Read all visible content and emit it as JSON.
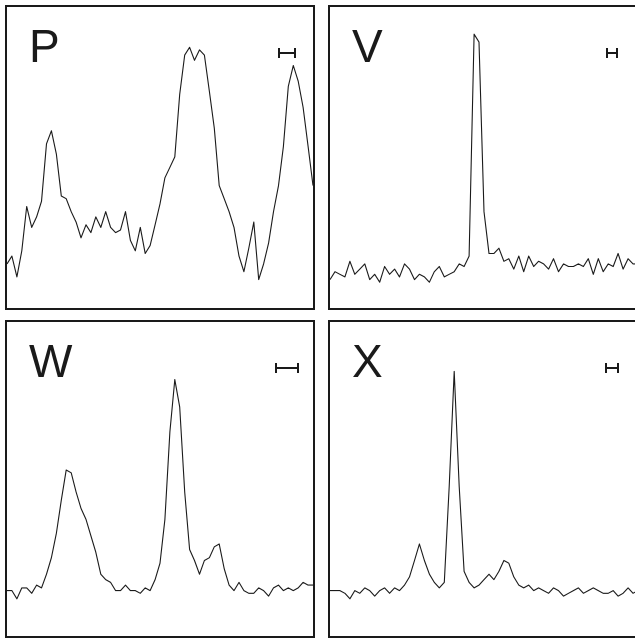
{
  "chart_data": [
    {
      "type": "line",
      "label": "P",
      "scale_bar_halfwidth": 8,
      "line_color": "#1a1a1a",
      "x": [
        0,
        1,
        2,
        3,
        4,
        5,
        6,
        7,
        8,
        9,
        10,
        11,
        12,
        13,
        14,
        15,
        16,
        17,
        18,
        19,
        20,
        21,
        22,
        23,
        24,
        25,
        26,
        27,
        28,
        29,
        30,
        31,
        32,
        33,
        34,
        35,
        36,
        37,
        38,
        39,
        40,
        41,
        42,
        43,
        44,
        45,
        46,
        47,
        48,
        49,
        50,
        51,
        52,
        53,
        54,
        55,
        56,
        57,
        58,
        59,
        60,
        61,
        62
      ],
      "values": [
        10,
        13,
        5,
        15,
        32,
        24,
        28,
        34,
        56,
        61,
        52,
        36,
        35,
        30,
        26,
        20,
        25,
        22,
        28,
        24,
        30,
        24,
        22,
        23,
        30,
        19,
        15,
        24,
        14,
        17,
        25,
        33,
        43,
        47,
        51,
        75,
        90,
        93,
        88,
        92,
        90,
        76,
        62,
        40,
        35,
        30,
        24,
        13,
        7,
        16,
        26,
        4,
        10,
        18,
        30,
        40,
        55,
        78,
        86,
        80,
        70,
        55,
        40
      ],
      "ylim": [
        0,
        100
      ]
    },
    {
      "type": "line",
      "label": "V",
      "scale_bar_halfwidth": 5,
      "line_color": "#1a1a1a",
      "x": [
        0,
        1,
        2,
        3,
        4,
        5,
        6,
        7,
        8,
        9,
        10,
        11,
        12,
        13,
        14,
        15,
        16,
        17,
        18,
        19,
        20,
        21,
        22,
        23,
        24,
        25,
        26,
        27,
        28,
        29,
        30,
        31,
        32,
        33,
        34,
        35,
        36,
        37,
        38,
        39,
        40,
        41,
        42,
        43,
        44,
        45,
        46,
        47,
        48,
        49,
        50,
        51,
        52,
        53,
        54,
        55,
        56,
        57,
        58,
        59,
        60,
        61,
        62
      ],
      "values": [
        4,
        7,
        6,
        5,
        11,
        6,
        8,
        10,
        4,
        6,
        3,
        9,
        6,
        8,
        5,
        10,
        8,
        4,
        6,
        5,
        3,
        7,
        9,
        5,
        6,
        7,
        10,
        9,
        13,
        98,
        95,
        30,
        14,
        14,
        16,
        11,
        12,
        8,
        13,
        7,
        13,
        9,
        11,
        10,
        8,
        12,
        7,
        10,
        9,
        9,
        10,
        9,
        12,
        6,
        12,
        7,
        10,
        9,
        14,
        8,
        12,
        10,
        10
      ],
      "ylim": [
        0,
        100
      ]
    },
    {
      "type": "line",
      "label": "W",
      "scale_bar_halfwidth": 11,
      "line_color": "#1a1a1a",
      "x": [
        0,
        1,
        2,
        3,
        4,
        5,
        6,
        7,
        8,
        9,
        10,
        11,
        12,
        13,
        14,
        15,
        16,
        17,
        18,
        19,
        20,
        21,
        22,
        23,
        24,
        25,
        26,
        27,
        28,
        29,
        30,
        31,
        32,
        33,
        34,
        35,
        36,
        37,
        38,
        39,
        40,
        41,
        42,
        43,
        44,
        45,
        46,
        47,
        48,
        49,
        50,
        51,
        52,
        53,
        54,
        55,
        56,
        57,
        58,
        59,
        60,
        61,
        62
      ],
      "values": [
        10,
        10,
        7,
        11,
        11,
        9,
        12,
        11,
        16,
        22,
        31,
        43,
        54,
        53,
        46,
        40,
        36,
        30,
        24,
        16,
        14,
        13,
        10,
        10,
        12,
        10,
        10,
        9,
        11,
        10,
        14,
        20,
        36,
        68,
        87,
        77,
        46,
        25,
        21,
        16,
        21,
        22,
        26,
        27,
        18,
        12,
        10,
        13,
        10,
        9,
        9,
        11,
        10,
        8,
        11,
        12,
        10,
        11,
        10,
        11,
        13,
        12,
        12
      ],
      "ylim": [
        0,
        100
      ]
    },
    {
      "type": "line",
      "label": "X",
      "scale_bar_halfwidth": 6,
      "line_color": "#1a1a1a",
      "x": [
        0,
        1,
        2,
        3,
        4,
        5,
        6,
        7,
        8,
        9,
        10,
        11,
        12,
        13,
        14,
        15,
        16,
        17,
        18,
        19,
        20,
        21,
        22,
        23,
        24,
        25,
        26,
        27,
        28,
        29,
        30,
        31,
        32,
        33,
        34,
        35,
        36,
        37,
        38,
        39,
        40,
        41,
        42,
        43,
        44,
        45,
        46,
        47,
        48,
        49,
        50,
        51,
        52,
        53,
        54,
        55,
        56,
        57,
        58,
        59,
        60,
        61,
        62
      ],
      "values": [
        10,
        10,
        10,
        9,
        7,
        10,
        9,
        11,
        10,
        8,
        10,
        11,
        9,
        11,
        10,
        12,
        15,
        21,
        27,
        21,
        16,
        13,
        11,
        13,
        48,
        90,
        48,
        17,
        13,
        11,
        12,
        14,
        16,
        14,
        17,
        21,
        20,
        15,
        12,
        11,
        12,
        10,
        11,
        10,
        9,
        11,
        10,
        8,
        9,
        10,
        11,
        9,
        10,
        11,
        10,
        9,
        9,
        10,
        8,
        9,
        11,
        9,
        10
      ],
      "ylim": [
        0,
        100
      ]
    }
  ]
}
